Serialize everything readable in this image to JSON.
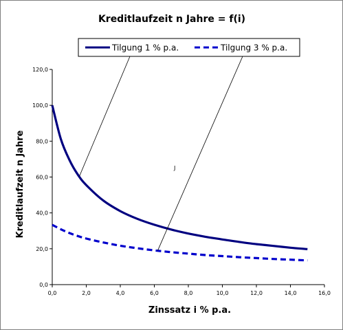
{
  "chart_data": {
    "type": "line",
    "title": "Kreditlaufzeit  n Jahre = f(i)",
    "xlabel": "Zinssatz i % p.a.",
    "ylabel": "Kreditlaufzeit n Jahre",
    "xlim": [
      0,
      16
    ],
    "ylim": [
      0,
      120
    ],
    "grid": false,
    "legend_position": "top",
    "x_ticks": [
      "0,0",
      "2,0",
      "4,0",
      "6,0",
      "8,0",
      "10,0",
      "12,0",
      "14,0",
      "16,0"
    ],
    "y_ticks": [
      "0,0",
      "20,0",
      "40,0",
      "60,0",
      "80,0",
      "100,0",
      "120,0"
    ],
    "series": [
      {
        "name": "Tilgung 1 % p.a.",
        "style": "solid",
        "color": "#000080",
        "x": [
          0,
          0.5,
          1,
          1.5,
          2,
          3,
          4,
          5,
          6,
          7,
          8,
          9,
          10,
          11,
          12,
          13,
          14,
          15
        ],
        "y": [
          100,
          81.3,
          69.7,
          61.4,
          55.5,
          46.9,
          41.0,
          36.7,
          33.4,
          30.7,
          28.5,
          26.7,
          25.2,
          23.8,
          22.6,
          21.6,
          20.6,
          19.8
        ]
      },
      {
        "name": "Tilgung 3 % p.a.",
        "style": "dashed",
        "color": "#0000CC",
        "x": [
          0,
          0.5,
          1,
          1.5,
          2,
          3,
          4,
          5,
          6,
          7,
          8,
          9,
          10,
          11,
          12,
          13,
          14,
          15
        ],
        "y": [
          33.3,
          30.9,
          28.8,
          27.1,
          25.7,
          23.5,
          21.7,
          20.3,
          19.1,
          18.1,
          17.3,
          16.5,
          15.9,
          15.3,
          14.8,
          14.3,
          13.9,
          13.5
        ]
      }
    ],
    "annotations": [
      {
        "text": "J",
        "x": 7.2,
        "y": 64
      }
    ],
    "leader_lines": [
      {
        "from_legend": 0,
        "to": [
          1.6,
          60.5
        ]
      },
      {
        "from_legend": 1,
        "to": [
          6.2,
          19.0
        ]
      }
    ]
  },
  "colors": {
    "background": "#ffffff",
    "frame": "#7f7f7f",
    "axis": "#000000"
  }
}
